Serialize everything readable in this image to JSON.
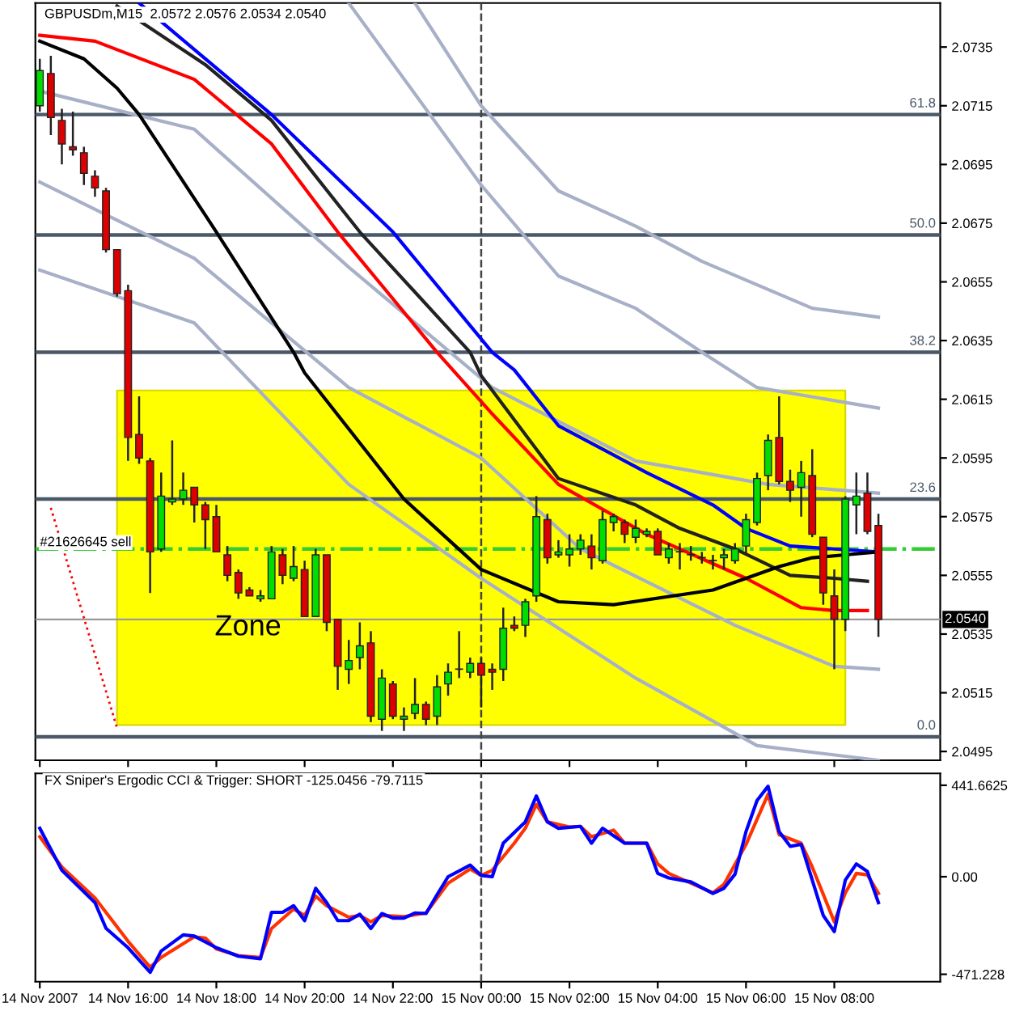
{
  "chart_data": [
    {
      "type": "candlestick",
      "title": "GBPUSDm,M15  2.0572 2.0576 2.0534 2.0540",
      "x": [
        "2007-11-14T14:00",
        "2007-11-14T14:15",
        "2007-11-14T14:30",
        "2007-11-14T14:45",
        "2007-11-14T15:00",
        "2007-11-14T15:15",
        "2007-11-14T15:30",
        "2007-11-14T15:45",
        "2007-11-14T16:00",
        "2007-11-14T16:15",
        "2007-11-14T16:30",
        "2007-11-14T16:45",
        "2007-11-14T17:00",
        "2007-11-14T17:15",
        "2007-11-14T17:30",
        "2007-11-14T17:45",
        "2007-11-14T18:00",
        "2007-11-14T18:15",
        "2007-11-14T18:30",
        "2007-11-14T18:45",
        "2007-11-14T19:00",
        "2007-11-14T19:15",
        "2007-11-14T19:30",
        "2007-11-14T19:45",
        "2007-11-14T20:00",
        "2007-11-14T20:15",
        "2007-11-14T20:30",
        "2007-11-14T20:45",
        "2007-11-14T21:00",
        "2007-11-14T21:15",
        "2007-11-14T21:30",
        "2007-11-14T21:45",
        "2007-11-14T22:00",
        "2007-11-14T22:15",
        "2007-11-14T22:30",
        "2007-11-14T22:45",
        "2007-11-14T23:00",
        "2007-11-14T23:15",
        "2007-11-14T23:30",
        "2007-11-14T23:45",
        "2007-11-15T00:00",
        "2007-11-15T00:15",
        "2007-11-15T00:30",
        "2007-11-15T00:45",
        "2007-11-15T01:00",
        "2007-11-15T01:15",
        "2007-11-15T01:30",
        "2007-11-15T01:45",
        "2007-11-15T02:00",
        "2007-11-15T02:15",
        "2007-11-15T02:30",
        "2007-11-15T02:45",
        "2007-11-15T03:00",
        "2007-11-15T03:15",
        "2007-11-15T03:30",
        "2007-11-15T03:45",
        "2007-11-15T04:00",
        "2007-11-15T04:15",
        "2007-11-15T04:30",
        "2007-11-15T04:45",
        "2007-11-15T05:00",
        "2007-11-15T05:15",
        "2007-11-15T05:30",
        "2007-11-15T05:45",
        "2007-11-15T06:00",
        "2007-11-15T06:15",
        "2007-11-15T06:30",
        "2007-11-15T06:45",
        "2007-11-15T07:00",
        "2007-11-15T07:15",
        "2007-11-15T07:30",
        "2007-11-15T07:45",
        "2007-11-15T08:00",
        "2007-11-15T08:15",
        "2007-11-15T08:30",
        "2007-11-15T08:45",
        "2007-11-15T09:00"
      ],
      "ohlc": [
        [
          2.0715,
          2.0731,
          2.0713,
          2.0727
        ],
        [
          2.0726,
          2.0732,
          2.0705,
          2.0711
        ],
        [
          2.071,
          2.0714,
          2.0695,
          2.0702
        ],
        [
          2.0701,
          2.0713,
          2.0698,
          2.07
        ],
        [
          2.0699,
          2.0701,
          2.0688,
          2.0692
        ],
        [
          2.0691,
          2.0693,
          2.0684,
          2.0687
        ],
        [
          2.0686,
          2.0687,
          2.0665,
          2.0666
        ],
        [
          2.0666,
          2.0666,
          2.065,
          2.0651
        ],
        [
          2.0652,
          2.0654,
          2.0594,
          2.0602
        ],
        [
          2.0603,
          2.0616,
          2.0593,
          2.0595
        ],
        [
          2.0594,
          2.0595,
          2.0549,
          2.0563
        ],
        [
          2.0564,
          2.059,
          2.0563,
          2.0582
        ],
        [
          2.058,
          2.0601,
          2.0579,
          2.0581
        ],
        [
          2.0581,
          2.059,
          2.0579,
          2.0584
        ],
        [
          2.0585,
          2.0585,
          2.0573,
          2.0579
        ],
        [
          2.0579,
          2.058,
          2.0564,
          2.0574
        ],
        [
          2.0575,
          2.0579,
          2.0563,
          2.0563
        ],
        [
          2.0562,
          2.0565,
          2.0553,
          2.0555
        ],
        [
          2.0556,
          2.0557,
          2.0547,
          2.0549
        ],
        [
          2.055,
          2.0551,
          2.0548,
          2.0548
        ],
        [
          2.0547,
          2.055,
          2.0546,
          2.0548
        ],
        [
          2.0547,
          2.0565,
          2.0547,
          2.0563
        ],
        [
          2.0562,
          2.0564,
          2.0552,
          2.0555
        ],
        [
          2.0554,
          2.0565,
          2.0553,
          2.0558
        ],
        [
          2.0557,
          2.056,
          2.0541,
          2.0541
        ],
        [
          2.0541,
          2.0564,
          2.0541,
          2.0562
        ],
        [
          2.0562,
          2.0562,
          2.0536,
          2.0539
        ],
        [
          2.054,
          2.054,
          2.0516,
          2.0524
        ],
        [
          2.0523,
          2.0533,
          2.0518,
          2.0526
        ],
        [
          2.0527,
          2.0539,
          2.0523,
          2.0531
        ],
        [
          2.0532,
          2.0536,
          2.0505,
          2.0507
        ],
        [
          2.0506,
          2.0523,
          2.0502,
          2.052
        ],
        [
          2.0518,
          2.0519,
          2.0506,
          2.0507
        ],
        [
          2.0506,
          2.051,
          2.0502,
          2.0507
        ],
        [
          2.0508,
          2.052,
          2.0506,
          2.0511
        ],
        [
          2.0511,
          2.0512,
          2.0504,
          2.0506
        ],
        [
          2.0507,
          2.0521,
          2.0504,
          2.0517
        ],
        [
          2.0518,
          2.0525,
          2.0514,
          2.0522
        ],
        [
          2.0523,
          2.0536,
          2.052,
          2.0523
        ],
        [
          2.0522,
          2.0527,
          2.052,
          2.0525
        ],
        [
          2.0525,
          2.0527,
          2.051,
          2.0521
        ],
        [
          2.0523,
          2.0525,
          2.0516,
          2.0522
        ],
        [
          2.0523,
          2.0544,
          2.0519,
          2.0537
        ],
        [
          2.0538,
          2.0541,
          2.0536,
          2.0537
        ],
        [
          2.0538,
          2.0547,
          2.0534,
          2.0546
        ],
        [
          2.0548,
          2.0582,
          2.0546,
          2.0575
        ],
        [
          2.0574,
          2.0576,
          2.0559,
          2.0561
        ],
        [
          2.0562,
          2.0567,
          2.0561,
          2.0563
        ],
        [
          2.0562,
          2.0569,
          2.0558,
          2.0564
        ],
        [
          2.0564,
          2.0569,
          2.0562,
          2.0567
        ],
        [
          2.0565,
          2.0569,
          2.0557,
          2.0561
        ],
        [
          2.056,
          2.0577,
          2.0559,
          2.0574
        ],
        [
          2.0573,
          2.0576,
          2.057,
          2.0575
        ],
        [
          2.0573,
          2.0574,
          2.0566,
          2.0569
        ],
        [
          2.0568,
          2.0574,
          2.0566,
          2.0571
        ],
        [
          2.0569,
          2.0571,
          2.0568,
          2.057
        ],
        [
          2.057,
          2.0571,
          2.0562,
          2.0562
        ],
        [
          2.0561,
          2.0566,
          2.0559,
          2.0564
        ],
        [
          2.0563,
          2.0566,
          2.0557,
          2.0563
        ],
        [
          2.0562,
          2.0565,
          2.056,
          2.0562
        ],
        [
          2.0561,
          2.0563,
          2.0559,
          2.0561
        ],
        [
          2.056,
          2.0562,
          2.0557,
          2.056
        ],
        [
          2.0561,
          2.0564,
          2.0557,
          2.0562
        ],
        [
          2.056,
          2.0566,
          2.0559,
          2.0564
        ],
        [
          2.0565,
          2.0576,
          2.0562,
          2.0574
        ],
        [
          2.0573,
          2.059,
          2.0572,
          2.0588
        ],
        [
          2.0589,
          2.0603,
          2.0584,
          2.0601
        ],
        [
          2.0602,
          2.0616,
          2.0586,
          2.0587
        ],
        [
          2.0587,
          2.0591,
          2.058,
          2.0584
        ],
        [
          2.0585,
          2.0594,
          2.0575,
          2.059
        ],
        [
          2.0589,
          2.0598,
          2.0568,
          2.0569
        ],
        [
          2.0568,
          2.0568,
          2.0545,
          2.0549
        ],
        [
          2.0548,
          2.0557,
          2.0523,
          2.054
        ],
        [
          2.054,
          2.0582,
          2.0536,
          2.0581
        ],
        [
          2.0579,
          2.059,
          2.0569,
          2.0582
        ],
        [
          2.0583,
          2.059,
          2.0569,
          2.057
        ],
        [
          2.0572,
          2.0576,
          2.0534,
          2.054
        ]
      ],
      "colors": [
        "#00dd00",
        "#dd0000",
        "#dd0000",
        "#dd0000",
        "#dd0000",
        "#dd0000",
        "#dd0000",
        "#dd0000",
        "#dd0000",
        "#dd0000",
        "#dd0000",
        "#00dd00",
        "#00dd00",
        "#00dd00",
        "#dd0000",
        "#dd0000",
        "#dd0000",
        "#dd0000",
        "#dd0000",
        "#dd0000",
        "#00dd00",
        "#00dd00",
        "#dd0000",
        "#00dd00",
        "#dd0000",
        "#00dd00",
        "#dd0000",
        "#dd0000",
        "#00dd00",
        "#00dd00",
        "#dd0000",
        "#00dd00",
        "#dd0000",
        "#00dd00",
        "#00dd00",
        "#dd0000",
        "#00dd00",
        "#00dd00",
        "#00dd00",
        "#00dd00",
        "#dd0000",
        "#dd0000",
        "#00dd00",
        "#dd0000",
        "#00dd00",
        "#00dd00",
        "#dd0000",
        "#00dd00",
        "#00dd00",
        "#00dd00",
        "#dd0000",
        "#00dd00",
        "#00dd00",
        "#dd0000",
        "#00dd00",
        "#00dd00",
        "#dd0000",
        "#00dd00",
        "#00dd00",
        "#00dd00",
        "#00dd00",
        "#00dd00",
        "#00dd00",
        "#00dd00",
        "#00dd00",
        "#00dd00",
        "#00dd00",
        "#dd0000",
        "#dd0000",
        "#00dd00",
        "#dd0000",
        "#dd0000",
        "#dd0000",
        "#00dd00",
        "#00dd00",
        "#dd0000",
        "#dd0000"
      ],
      "series": [
        {
          "type": "line",
          "color": "#ffff00",
          "x": [
            "2007-11-14T15:45",
            "2007-11-15T08:15"
          ],
          "values": [
            null,
            null
          ],
          "lower": [
            2.0504,
            2.0504
          ],
          "upper": [
            2.0618,
            2.0618
          ]
        },
        {
          "type": "line",
          "color": "#a8b0c8",
          "x": [
            "2007-11-14T22:30",
            "2007-11-15T00:00",
            "2007-11-15T01:45",
            "2007-11-15T03:30",
            "2007-11-15T05:00",
            "2007-11-15T07:30",
            "2007-11-15T09:00"
          ],
          "values": [
            2.075,
            2.0715,
            2.0686,
            2.0674,
            2.0662,
            2.0646,
            2.0643
          ]
        },
        {
          "type": "line",
          "color": "#a8b0c8",
          "x": [
            "2007-11-14T21:00",
            "2007-11-15T00:00",
            "2007-11-15T01:45",
            "2007-11-15T03:30",
            "2007-11-15T05:00",
            "2007-11-15T06:15",
            "2007-11-15T09:00"
          ],
          "values": [
            2.075,
            2.0688,
            2.0657,
            2.0646,
            2.0631,
            2.0619,
            2.0612
          ]
        },
        {
          "type": "line",
          "color": "#a8b0c8",
          "x": [
            "2007-11-14T14:00",
            "2007-11-14T17:30",
            "2007-11-14T21:00",
            "2007-11-15T00:15",
            "2007-11-15T03:30",
            "2007-11-15T06:30",
            "2007-11-15T09:00"
          ],
          "values": [
            2.072,
            2.0707,
            2.066,
            2.0619,
            2.0594,
            2.0586,
            2.0583
          ]
        },
        {
          "type": "line",
          "color": "#a8b0c8",
          "x": [
            "2007-11-14T14:00",
            "2007-11-14T17:30",
            "2007-11-14T21:00",
            "2007-11-15T00:00",
            "2007-11-15T02:15",
            "2007-11-15T05:45",
            "2007-11-15T08:00",
            "2007-11-15T09:00"
          ],
          "values": [
            2.0689,
            2.0663,
            2.0619,
            2.0595,
            2.0564,
            2.0538,
            2.0524,
            2.0523
          ]
        },
        {
          "type": "line",
          "color": "#a8b0c8",
          "x": [
            "2007-11-14T14:00",
            "2007-11-14T17:30",
            "2007-11-14T21:00",
            "2007-11-15T00:00",
            "2007-11-15T03:30",
            "2007-11-15T06:15",
            "2007-11-15T09:00"
          ],
          "values": [
            2.0659,
            2.0641,
            2.0586,
            2.0554,
            2.052,
            2.0497,
            2.0492
          ]
        },
        {
          "type": "line",
          "color": "#222222",
          "x": [
            "2007-11-14T15:45",
            "2007-11-14T17:45",
            "2007-11-14T19:15",
            "2007-11-14T21:15",
            "2007-11-14T23:45",
            "2007-11-15T00:00",
            "2007-11-15T01:45",
            "2007-11-15T03:30",
            "2007-11-15T04:30",
            "2007-11-15T05:45",
            "2007-11-15T07:00",
            "2007-11-15T08:00",
            "2007-11-15T08:45"
          ],
          "values": [
            2.0749,
            2.0729,
            2.071,
            2.0672,
            2.0631,
            2.0623,
            2.0588,
            2.0579,
            2.0571,
            2.0564,
            2.0555,
            2.0554,
            2.0553
          ]
        },
        {
          "type": "line",
          "color": "#0000ff",
          "x": [
            "2007-11-14T16:15",
            "2007-11-14T19:15",
            "2007-11-14T22:00",
            "2007-11-15T00:15",
            "2007-11-15T00:45",
            "2007-11-15T01:45",
            "2007-11-15T03:45",
            "2007-11-15T05:15",
            "2007-11-15T06:00",
            "2007-11-15T07:00",
            "2007-11-15T08:00",
            "2007-11-15T09:00"
          ],
          "values": [
            2.075,
            2.0712,
            2.0672,
            2.0631,
            2.0625,
            2.0606,
            2.059,
            2.0579,
            2.0571,
            2.0565,
            2.0564,
            2.0563
          ]
        },
        {
          "type": "line",
          "color": "#ff0000",
          "x": [
            "2007-11-14T14:00",
            "2007-11-14T15:15",
            "2007-11-14T17:30",
            "2007-11-14T19:15",
            "2007-11-14T20:45",
            "2007-11-14T23:00",
            "2007-11-15T00:15",
            "2007-11-15T01:45",
            "2007-11-15T03:45",
            "2007-11-15T06:00",
            "2007-11-15T07:15",
            "2007-11-15T08:00",
            "2007-11-15T08:45"
          ],
          "values": [
            2.0739,
            2.0737,
            2.0724,
            2.0702,
            2.0672,
            2.0631,
            2.061,
            2.0586,
            2.0569,
            2.0554,
            2.0544,
            2.0543,
            2.0543
          ]
        },
        {
          "type": "line",
          "color": "#000000",
          "x": [
            "2007-11-14T14:00",
            "2007-11-14T15:00",
            "2007-11-14T15:45",
            "2007-11-14T16:15",
            "2007-11-14T18:00",
            "2007-11-14T19:45",
            "2007-11-14T20:00",
            "2007-11-14T22:15",
            "2007-11-15T00:00",
            "2007-11-15T01:45",
            "2007-11-15T03:00",
            "2007-11-15T05:15",
            "2007-11-15T06:45",
            "2007-11-15T07:30",
            "2007-11-15T08:15",
            "2007-11-15T09:00"
          ],
          "values": [
            2.0737,
            2.0731,
            2.0721,
            2.0712,
            2.0672,
            2.0631,
            2.0624,
            2.0581,
            2.0557,
            2.0546,
            2.0545,
            2.055,
            2.0558,
            2.0561,
            2.0562,
            2.0563
          ]
        },
        {
          "type": "line",
          "color": "#ff0000",
          "line_style": "dotted",
          "x": [
            "2007-11-14T14:15",
            "2007-11-14T15:45"
          ],
          "values": [
            2.0578,
            2.0503
          ]
        }
      ],
      "ref_lines": [
        {
          "axis": "y",
          "value": 2.0712,
          "color": "#4a5868",
          "line_style": "solid"
        },
        {
          "axis": "y",
          "value": 2.0671,
          "color": "#4a5868",
          "line_style": "solid"
        },
        {
          "axis": "y",
          "value": 2.0631,
          "color": "#4a5868",
          "line_style": "solid"
        },
        {
          "axis": "y",
          "value": 2.0581,
          "color": "#4a5868",
          "line_style": "solid"
        },
        {
          "axis": "y",
          "value": 2.05,
          "color": "#4a5868",
          "line_style": "solid"
        },
        {
          "axis": "y",
          "value": 2.0564,
          "label": "#21626645 sell",
          "color": "#33cc33",
          "line_style": "dashdot"
        },
        {
          "axis": "y",
          "value": 2.054,
          "label": "2.0540",
          "color": "#999999",
          "line_style": "solid"
        },
        {
          "axis": "x",
          "value": "2007-11-15T00:00",
          "color": "#444444",
          "line_style": "dashed"
        }
      ],
      "annotations": [
        "Zone",
        {
          "text": "61.8",
          "x": "2007-11-15T10:24",
          "y": 2.0712
        },
        {
          "text": "50.0",
          "x": "2007-11-15T10:24",
          "y": 2.0671
        },
        {
          "text": "38.2",
          "x": "2007-11-15T10:24",
          "y": 2.0631
        },
        {
          "text": "23.6",
          "x": "2007-11-15T10:24",
          "y": 2.0581
        },
        {
          "text": "0.0",
          "x": "2007-11-15T10:24",
          "y": 2.05
        }
      ],
      "xlim": [
        "2007-11-14T13:54",
        "2007-11-15T10:24"
      ],
      "ylim": [
        2.0492,
        2.075
      ],
      "xticks": [
        {
          "value": "2007-11-14T14:00",
          "label": null
        },
        {
          "value": "2007-11-14T16:00",
          "label": null
        },
        {
          "value": "2007-11-14T18:00",
          "label": null
        },
        {
          "value": "2007-11-14T20:00",
          "label": null
        },
        {
          "value": "2007-11-14T22:00",
          "label": null
        },
        {
          "value": "2007-11-15T00:00",
          "label": null
        },
        {
          "value": "2007-11-15T02:00",
          "label": null
        },
        {
          "value": "2007-11-15T04:00",
          "label": null
        },
        {
          "value": "2007-11-15T06:00",
          "label": null
        },
        {
          "value": "2007-11-15T08:00",
          "label": null
        }
      ],
      "yticks": [
        2.0735,
        2.0715,
        2.0695,
        2.0675,
        2.0655,
        2.0635,
        2.0615,
        2.0595,
        2.0575,
        2.0555,
        2.0535,
        2.0515,
        2.0495
      ],
      "tick_labels": "y"
    },
    {
      "type": "line",
      "title": "FX Sniper's Ergodic CCI & Trigger: SHORT -125.0456 -79.7115",
      "series": [
        {
          "color": "#ff3300",
          "x": [
            "2007-11-14T14:00",
            "2007-11-14T14:30",
            "2007-11-14T15:15",
            "2007-11-14T16:00",
            "2007-11-14T16:30",
            "2007-11-14T16:45",
            "2007-11-14T17:30",
            "2007-11-14T17:45",
            "2007-11-14T18:00",
            "2007-11-14T18:30",
            "2007-11-14T19:00",
            "2007-11-14T19:15",
            "2007-11-14T19:45",
            "2007-11-14T20:00",
            "2007-11-14T20:15",
            "2007-11-14T20:30",
            "2007-11-14T21:00",
            "2007-11-14T21:15",
            "2007-11-14T21:30",
            "2007-11-14T21:45",
            "2007-11-14T22:15",
            "2007-11-14T22:45",
            "2007-11-14T23:15",
            "2007-11-14T23:45",
            "2007-11-15T00:00",
            "2007-11-15T00:15",
            "2007-11-15T00:45",
            "2007-11-15T01:00",
            "2007-11-15T01:15",
            "2007-11-15T01:30",
            "2007-11-15T02:00",
            "2007-11-15T02:15",
            "2007-11-15T02:30",
            "2007-11-15T03:00",
            "2007-11-15T03:15",
            "2007-11-15T03:45",
            "2007-11-15T04:00",
            "2007-11-15T04:15",
            "2007-11-15T04:45",
            "2007-11-15T05:15",
            "2007-11-15T05:30",
            "2007-11-15T06:00",
            "2007-11-15T06:30",
            "2007-11-15T06:45",
            "2007-11-15T07:15",
            "2007-11-15T07:30",
            "2007-11-15T08:00",
            "2007-11-15T08:15",
            "2007-11-15T08:30",
            "2007-11-15T08:45",
            "2007-11-15T09:00"
          ],
          "values": [
            193,
            47,
            -103,
            -312,
            -437,
            -390,
            -290,
            -296,
            -349,
            -381,
            -390,
            -250,
            -156,
            -187,
            -94,
            -140,
            -196,
            -187,
            -218,
            -187,
            -193,
            -175,
            -31,
            37,
            6,
            31,
            162,
            234,
            349,
            265,
            240,
            243,
            193,
            225,
            162,
            162,
            62,
            16,
            -31,
            -78,
            -37,
            156,
            399,
            203,
            162,
            47,
            -218,
            -78,
            16,
            9,
            -80
          ]
        },
        {
          "color": "#0000ff",
          "x": [
            "2007-11-14T14:00",
            "2007-11-14T14:30",
            "2007-11-14T15:15",
            "2007-11-14T15:30",
            "2007-11-14T16:00",
            "2007-11-14T16:30",
            "2007-11-14T16:45",
            "2007-11-14T17:15",
            "2007-11-14T17:30",
            "2007-11-14T18:00",
            "2007-11-14T18:30",
            "2007-11-14T19:00",
            "2007-11-14T19:15",
            "2007-11-14T19:30",
            "2007-11-14T19:45",
            "2007-11-14T20:00",
            "2007-11-14T20:15",
            "2007-11-14T20:30",
            "2007-11-14T20:45",
            "2007-11-14T21:00",
            "2007-11-14T21:15",
            "2007-11-14T21:30",
            "2007-11-14T21:45",
            "2007-11-14T22:00",
            "2007-11-14T22:15",
            "2007-11-14T22:30",
            "2007-11-14T22:45",
            "2007-11-14T23:00",
            "2007-11-14T23:15",
            "2007-11-14T23:45",
            "2007-11-15T00:00",
            "2007-11-15T00:15",
            "2007-11-15T00:30",
            "2007-11-15T01:00",
            "2007-11-15T01:15",
            "2007-11-15T01:30",
            "2007-11-15T01:45",
            "2007-11-15T02:15",
            "2007-11-15T02:30",
            "2007-11-15T02:45",
            "2007-11-15T03:15",
            "2007-11-15T03:45",
            "2007-11-15T04:00",
            "2007-11-15T04:15",
            "2007-11-15T04:45",
            "2007-11-15T05:15",
            "2007-11-15T05:30",
            "2007-11-15T05:45",
            "2007-11-15T06:00",
            "2007-11-15T06:15",
            "2007-11-15T06:30",
            "2007-11-15T06:45",
            "2007-11-15T07:00",
            "2007-11-15T07:15",
            "2007-11-15T07:45",
            "2007-11-15T08:00",
            "2007-11-15T08:15",
            "2007-11-15T08:30",
            "2007-11-15T08:45",
            "2007-11-15T09:00"
          ],
          "values": [
            234,
            31,
            -125,
            -249,
            -343,
            -462,
            -359,
            -281,
            -287,
            -343,
            -384,
            -396,
            -172,
            -172,
            -140,
            -212,
            -56,
            -125,
            -212,
            -212,
            -181,
            -250,
            -178,
            -200,
            -200,
            -175,
            -178,
            -87,
            0,
            56,
            6,
            0,
            162,
            265,
            390,
            265,
            234,
            243,
            162,
            234,
            162,
            162,
            16,
            -6,
            -25,
            -81,
            -56,
            12,
            218,
            368,
            437,
            218,
            147,
            156,
            -187,
            -265,
            -16,
            62,
            25,
            -125
          ]
        }
      ],
      "ref_lines": [
        {
          "axis": "x",
          "value": "2007-11-15T00:00",
          "color": "#444444",
          "line_style": "dashed"
        }
      ],
      "xlim": [
        "2007-11-14T13:54",
        "2007-11-15T10:24"
      ],
      "ylim": [
        -507,
        499
      ],
      "xticks": [
        {
          "value": "2007-11-14T14:00",
          "label": "14 Nov 2007"
        },
        {
          "value": "2007-11-14T16:00",
          "label": "14 Nov 16:00"
        },
        {
          "value": "2007-11-14T18:00",
          "label": "14 Nov 18:00"
        },
        {
          "value": "2007-11-14T20:00",
          "label": "14 Nov 20:00"
        },
        {
          "value": "2007-11-14T22:00",
          "label": "14 Nov 22:00"
        },
        {
          "value": "2007-11-15T00:00",
          "label": "15 Nov 00:00"
        },
        {
          "value": "2007-11-15T02:00",
          "label": "15 Nov 02:00"
        },
        {
          "value": "2007-11-15T04:00",
          "label": "15 Nov 04:00"
        },
        {
          "value": "2007-11-15T06:00",
          "label": "15 Nov 06:00"
        },
        {
          "value": "2007-11-15T08:00",
          "label": "15 Nov 08:00"
        }
      ],
      "yticks": [
        441.6625,
        {
          "value": 0,
          "label": "0.00"
        },
        {
          "value": -471.228,
          "label": "-471.228"
        }
      ]
    }
  ]
}
